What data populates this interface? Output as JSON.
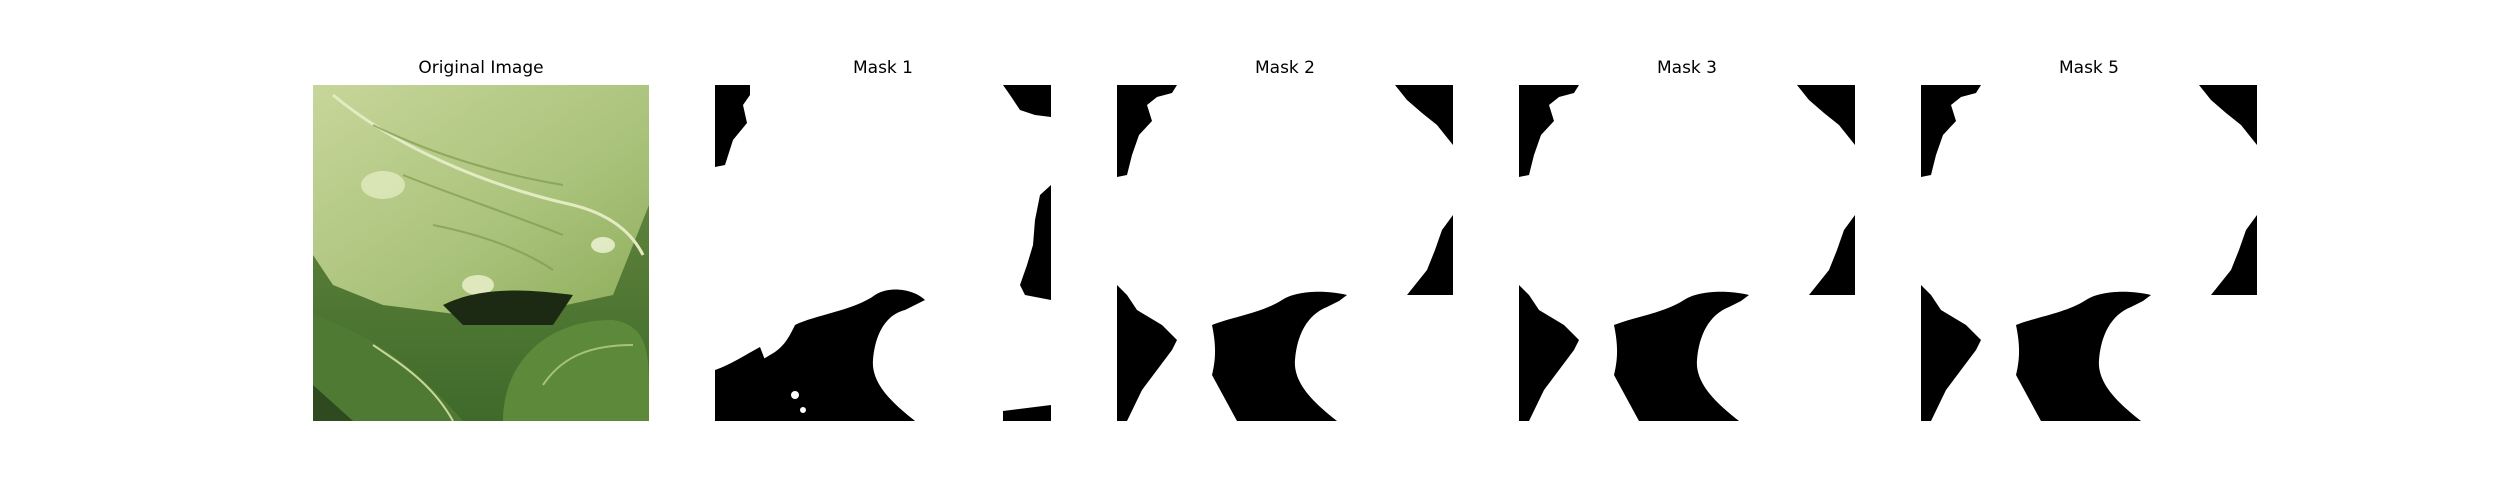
{
  "figure": {
    "panels": [
      {
        "title": "Original Image",
        "kind": "photo",
        "content": "Close-up of green leafy vegetable leaves"
      },
      {
        "title": "Mask 1",
        "kind": "mask"
      },
      {
        "title": "Mask 2",
        "kind": "mask"
      },
      {
        "title": "Mask 3",
        "kind": "mask"
      },
      {
        "title": "Mask 5",
        "kind": "mask"
      }
    ],
    "colors": {
      "mask_foreground": "#ffffff",
      "mask_background": "#000000",
      "leaf_light": "#c9d79a",
      "leaf_mid": "#9fb86a",
      "leaf_dark": "#4f7a34",
      "shadow": "#1c2a14"
    }
  }
}
